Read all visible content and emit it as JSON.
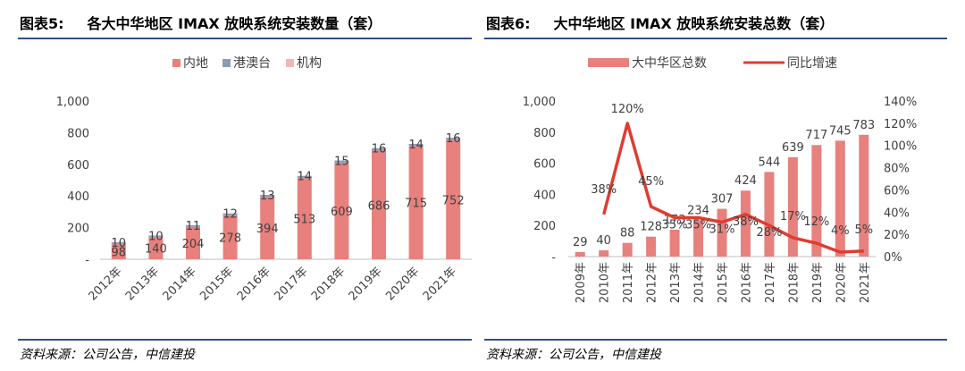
{
  "left": {
    "fig_no": "图表5:",
    "title": "各大中华地区 IMAX 放映系统安装数量（套）",
    "source": "资料来源：公司公告，中信建投"
  },
  "right": {
    "fig_no": "图表6:",
    "title": "大中华地区 IMAX 放映系统安装总数（套）",
    "source": "资料来源：公司公告，中信建投"
  },
  "colors": {
    "rule": "#2f4f8f",
    "inland": "#e8807d",
    "hkmo": "#8e9bb5",
    "institution": "#f4b6b4",
    "total": "#e8807d",
    "growth": "#e03c31",
    "axis": "#bfbfbf",
    "text": "#404040"
  },
  "chart_data": [
    {
      "type": "bar",
      "stacked": true,
      "categories": [
        "2012年",
        "2013年",
        "2014年",
        "2015年",
        "2016年",
        "2017年",
        "2018年",
        "2019年",
        "2020年",
        "2021年"
      ],
      "series": [
        {
          "name": "内地",
          "values": [
            98,
            140,
            204,
            278,
            394,
            513,
            609,
            686,
            715,
            752
          ]
        },
        {
          "name": "港澳台",
          "values": [
            10,
            10,
            11,
            12,
            13,
            14,
            15,
            16,
            14,
            16
          ]
        },
        {
          "name": "机构",
          "values": [
            0,
            0,
            0,
            0,
            0,
            0,
            0,
            0,
            0,
            0
          ]
        }
      ],
      "ylim": [
        0,
        1000
      ],
      "yticks": [
        "-",
        "200",
        "400",
        "600",
        "800",
        "1,000"
      ],
      "legend": "top",
      "grid": false
    },
    {
      "type": "bar+line",
      "categories": [
        "2009年",
        "2010年",
        "2011年",
        "2012年",
        "2013年",
        "2014年",
        "2015年",
        "2016年",
        "2017年",
        "2018年",
        "2019年",
        "2020年",
        "2021年"
      ],
      "series": [
        {
          "name": "大中华区总数",
          "type": "bar",
          "axis": "left",
          "values": [
            29,
            40,
            88,
            128,
            173,
            234,
            307,
            424,
            544,
            639,
            717,
            745,
            783
          ]
        },
        {
          "name": "同比增速",
          "type": "line",
          "axis": "right",
          "values": [
            null,
            38,
            120,
            45,
            35,
            35,
            31,
            38,
            28,
            17,
            12,
            4,
            5
          ],
          "labels": [
            "",
            "38%",
            "120%",
            "45%",
            "35%",
            "35%",
            "31%",
            "38%",
            "28%",
            "17%",
            "12%",
            "4%",
            "5%"
          ]
        }
      ],
      "ylim_left": [
        0,
        1000
      ],
      "ylim_right": [
        0,
        140
      ],
      "yticks_left": [
        "-",
        "200",
        "400",
        "600",
        "800",
        "1,000"
      ],
      "yticks_right": [
        "0%",
        "20%",
        "40%",
        "60%",
        "80%",
        "100%",
        "120%",
        "140%"
      ],
      "legend": "top",
      "grid": false
    }
  ]
}
